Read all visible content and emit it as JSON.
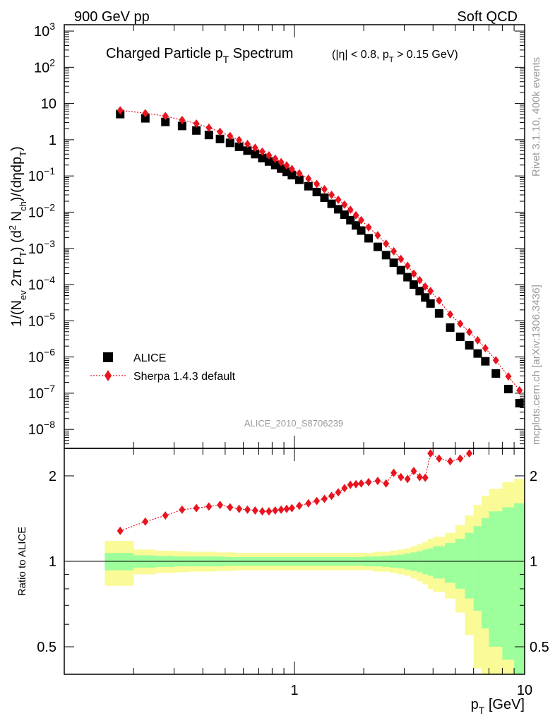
{
  "header": {
    "left": "900 GeV pp",
    "right": "Soft QCD"
  },
  "chart_data": [
    {
      "type": "scatter",
      "title": {
        "main": "Charged Particle p",
        "main_sub": "T",
        "main_tail": " Spectrum",
        "cut_a": "(|η| < 0.8, p",
        "cut_sub": "T",
        "cut_b": " > 0.15 GeV)"
      },
      "ylabel_parts": [
        "1/(N",
        "ev",
        " 2π p",
        "T",
        ") (d",
        "2",
        " N",
        "ch",
        ")/(dηdp",
        "T",
        ")"
      ],
      "y_scale": "log",
      "ylim": [
        3e-09,
        1500
      ],
      "xlim": [
        0.1,
        10
      ],
      "x_scale": "log",
      "y_ticks": [
        {
          "v": 1000,
          "label": "10",
          "exp": "3"
        },
        {
          "v": 100,
          "label": "10",
          "exp": "2"
        },
        {
          "v": 10,
          "label": "10",
          "exp": ""
        },
        {
          "v": 1,
          "label": "1",
          "exp": ""
        },
        {
          "v": 0.1,
          "label": "10",
          "exp": "−1"
        },
        {
          "v": 0.01,
          "label": "10",
          "exp": "−2"
        },
        {
          "v": 0.001,
          "label": "10",
          "exp": "−3"
        },
        {
          "v": 0.0001,
          "label": "10",
          "exp": "−4"
        },
        {
          "v": 1e-05,
          "label": "10",
          "exp": "−5"
        },
        {
          "v": 1e-06,
          "label": "10",
          "exp": "−6"
        },
        {
          "v": 1e-07,
          "label": "10",
          "exp": "−7"
        },
        {
          "v": 1e-08,
          "label": "10",
          "exp": "−8"
        }
      ],
      "legend": {
        "placement": "bottom-left",
        "entries": [
          "ALICE",
          "Sherpa 1.4.3 default"
        ]
      },
      "watermark": "ALICE_2010_S8706239",
      "x": [
        0.175,
        0.225,
        0.275,
        0.325,
        0.375,
        0.425,
        0.475,
        0.525,
        0.575,
        0.625,
        0.675,
        0.725,
        0.775,
        0.825,
        0.875,
        0.925,
        0.975,
        1.05,
        1.15,
        1.25,
        1.35,
        1.45,
        1.55,
        1.65,
        1.75,
        1.85,
        1.95,
        2.1,
        2.3,
        2.5,
        2.7,
        2.9,
        3.1,
        3.3,
        3.5,
        3.7,
        3.9,
        4.25,
        4.75,
        5.25,
        5.75,
        6.25,
        6.75,
        7.5,
        8.5,
        9.5
      ],
      "series": [
        {
          "name": "ALICE",
          "color": "#000000",
          "marker": "square",
          "values": [
            5.1,
            3.9,
            3.1,
            2.4,
            1.8,
            1.35,
            1.05,
            0.82,
            0.64,
            0.5,
            0.4,
            0.31,
            0.25,
            0.2,
            0.16,
            0.13,
            0.105,
            0.078,
            0.052,
            0.036,
            0.025,
            0.017,
            0.012,
            0.0085,
            0.006,
            0.0043,
            0.0031,
            0.0019,
            0.0011,
            0.00065,
            0.0004,
            0.00025,
            0.00016,
            0.0001,
            6.6e-05,
            4.4e-05,
            3e-05,
            1.6e-05,
            6.5e-06,
            3.6e-06,
            2.1e-06,
            1.25e-06,
            7.6e-07,
            3.5e-07,
            1.3e-07,
            5.3e-08
          ]
        },
        {
          "name": "Sherpa 1.4.3 default",
          "color": "#e8141f",
          "marker": "diamond",
          "line": "dotted",
          "values": [
            6.5,
            5.4,
            4.5,
            3.5,
            2.8,
            2.15,
            1.65,
            1.27,
            0.98,
            0.76,
            0.6,
            0.47,
            0.37,
            0.3,
            0.24,
            0.195,
            0.155,
            0.118,
            0.084,
            0.06,
            0.043,
            0.03,
            0.022,
            0.0162,
            0.0116,
            0.0082,
            0.006,
            0.0038,
            0.0023,
            0.00135,
            0.00083,
            0.00051,
            0.00033,
            0.0002,
            0.000132,
            8.8e-05,
            6.6e-05,
            3.6e-05,
            1.5e-05,
            8.3e-06,
            4.9e-06,
            2.9e-06,
            1.75e-06,
            8.1e-07,
            2.9e-07,
            1.2e-07
          ]
        }
      ]
    },
    {
      "type": "scatter",
      "ylabel": "Ratio to ALICE",
      "xlabel_main": "p",
      "xlabel_sub": "T",
      "xlabel_tail": " [GeV]",
      "ylim": [
        0.4,
        2.5
      ],
      "xlim": [
        0.1,
        10
      ],
      "x_scale": "log",
      "y_ticks": [
        {
          "v": 2,
          "label": "2"
        },
        {
          "v": 1,
          "label": "1"
        },
        {
          "v": 0.5,
          "label": "0.5"
        }
      ],
      "x_ticks": [
        {
          "v": 1,
          "label": "1"
        },
        {
          "v": 10,
          "label": "10"
        }
      ],
      "uncertainty_bands": {
        "stat_color": "#9cff9c",
        "total_color": "#fafa96",
        "x_edges": [
          0.15,
          0.2,
          0.25,
          0.3,
          0.35,
          0.4,
          0.45,
          0.5,
          0.55,
          0.6,
          0.65,
          0.7,
          0.75,
          0.8,
          0.85,
          0.9,
          0.95,
          1.0,
          1.1,
          1.2,
          1.3,
          1.4,
          1.5,
          1.6,
          1.7,
          1.8,
          1.9,
          2.0,
          2.2,
          2.4,
          2.6,
          2.8,
          3.0,
          3.2,
          3.4,
          3.6,
          3.8,
          4.0,
          4.5,
          5.0,
          5.5,
          6.0,
          6.5,
          7.0,
          8.0,
          9.0,
          10.0
        ],
        "total_err": [
          0.18,
          0.1,
          0.09,
          0.085,
          0.08,
          0.08,
          0.075,
          0.075,
          0.07,
          0.07,
          0.07,
          0.07,
          0.07,
          0.07,
          0.07,
          0.07,
          0.07,
          0.07,
          0.07,
          0.07,
          0.07,
          0.07,
          0.07,
          0.07,
          0.07,
          0.07,
          0.07,
          0.07,
          0.08,
          0.08,
          0.09,
          0.1,
          0.11,
          0.13,
          0.15,
          0.17,
          0.2,
          0.22,
          0.26,
          0.34,
          0.45,
          0.58,
          0.7,
          0.8,
          0.9,
          0.95
        ],
        "stat_err": [
          0.07,
          0.05,
          0.045,
          0.04,
          0.04,
          0.04,
          0.04,
          0.035,
          0.035,
          0.035,
          0.035,
          0.035,
          0.035,
          0.035,
          0.035,
          0.035,
          0.035,
          0.035,
          0.035,
          0.035,
          0.035,
          0.035,
          0.035,
          0.035,
          0.035,
          0.035,
          0.035,
          0.04,
          0.04,
          0.045,
          0.05,
          0.055,
          0.065,
          0.075,
          0.085,
          0.1,
          0.11,
          0.13,
          0.16,
          0.2,
          0.26,
          0.33,
          0.42,
          0.5,
          0.55,
          0.6
        ]
      },
      "series": [
        {
          "name": "Sherpa 1.4.3 default",
          "color": "#e8141f",
          "marker": "diamond",
          "line": "dotted",
          "x": [
            0.175,
            0.225,
            0.275,
            0.325,
            0.375,
            0.425,
            0.475,
            0.525,
            0.575,
            0.625,
            0.675,
            0.725,
            0.775,
            0.825,
            0.875,
            0.925,
            0.975,
            1.05,
            1.15,
            1.25,
            1.35,
            1.45,
            1.55,
            1.65,
            1.75,
            1.85,
            1.95,
            2.1,
            2.3,
            2.5,
            2.7,
            2.9,
            3.1,
            3.3,
            3.5,
            3.7,
            3.9,
            4.25,
            4.75,
            5.25,
            5.75
          ],
          "values": [
            1.28,
            1.38,
            1.45,
            1.52,
            1.54,
            1.56,
            1.58,
            1.55,
            1.53,
            1.52,
            1.51,
            1.5,
            1.5,
            1.51,
            1.52,
            1.53,
            1.54,
            1.57,
            1.6,
            1.63,
            1.66,
            1.7,
            1.75,
            1.81,
            1.86,
            1.87,
            1.88,
            1.9,
            1.92,
            1.88,
            2.05,
            1.98,
            1.95,
            2.08,
            1.98,
            1.97,
            2.4,
            2.3,
            2.25,
            2.3,
            2.4
          ]
        }
      ]
    }
  ],
  "side": {
    "rivet": "Rivet 3.1.10,  400k events",
    "mcplots": "mcplots.cern.ch [arXiv:1306.3436]"
  }
}
